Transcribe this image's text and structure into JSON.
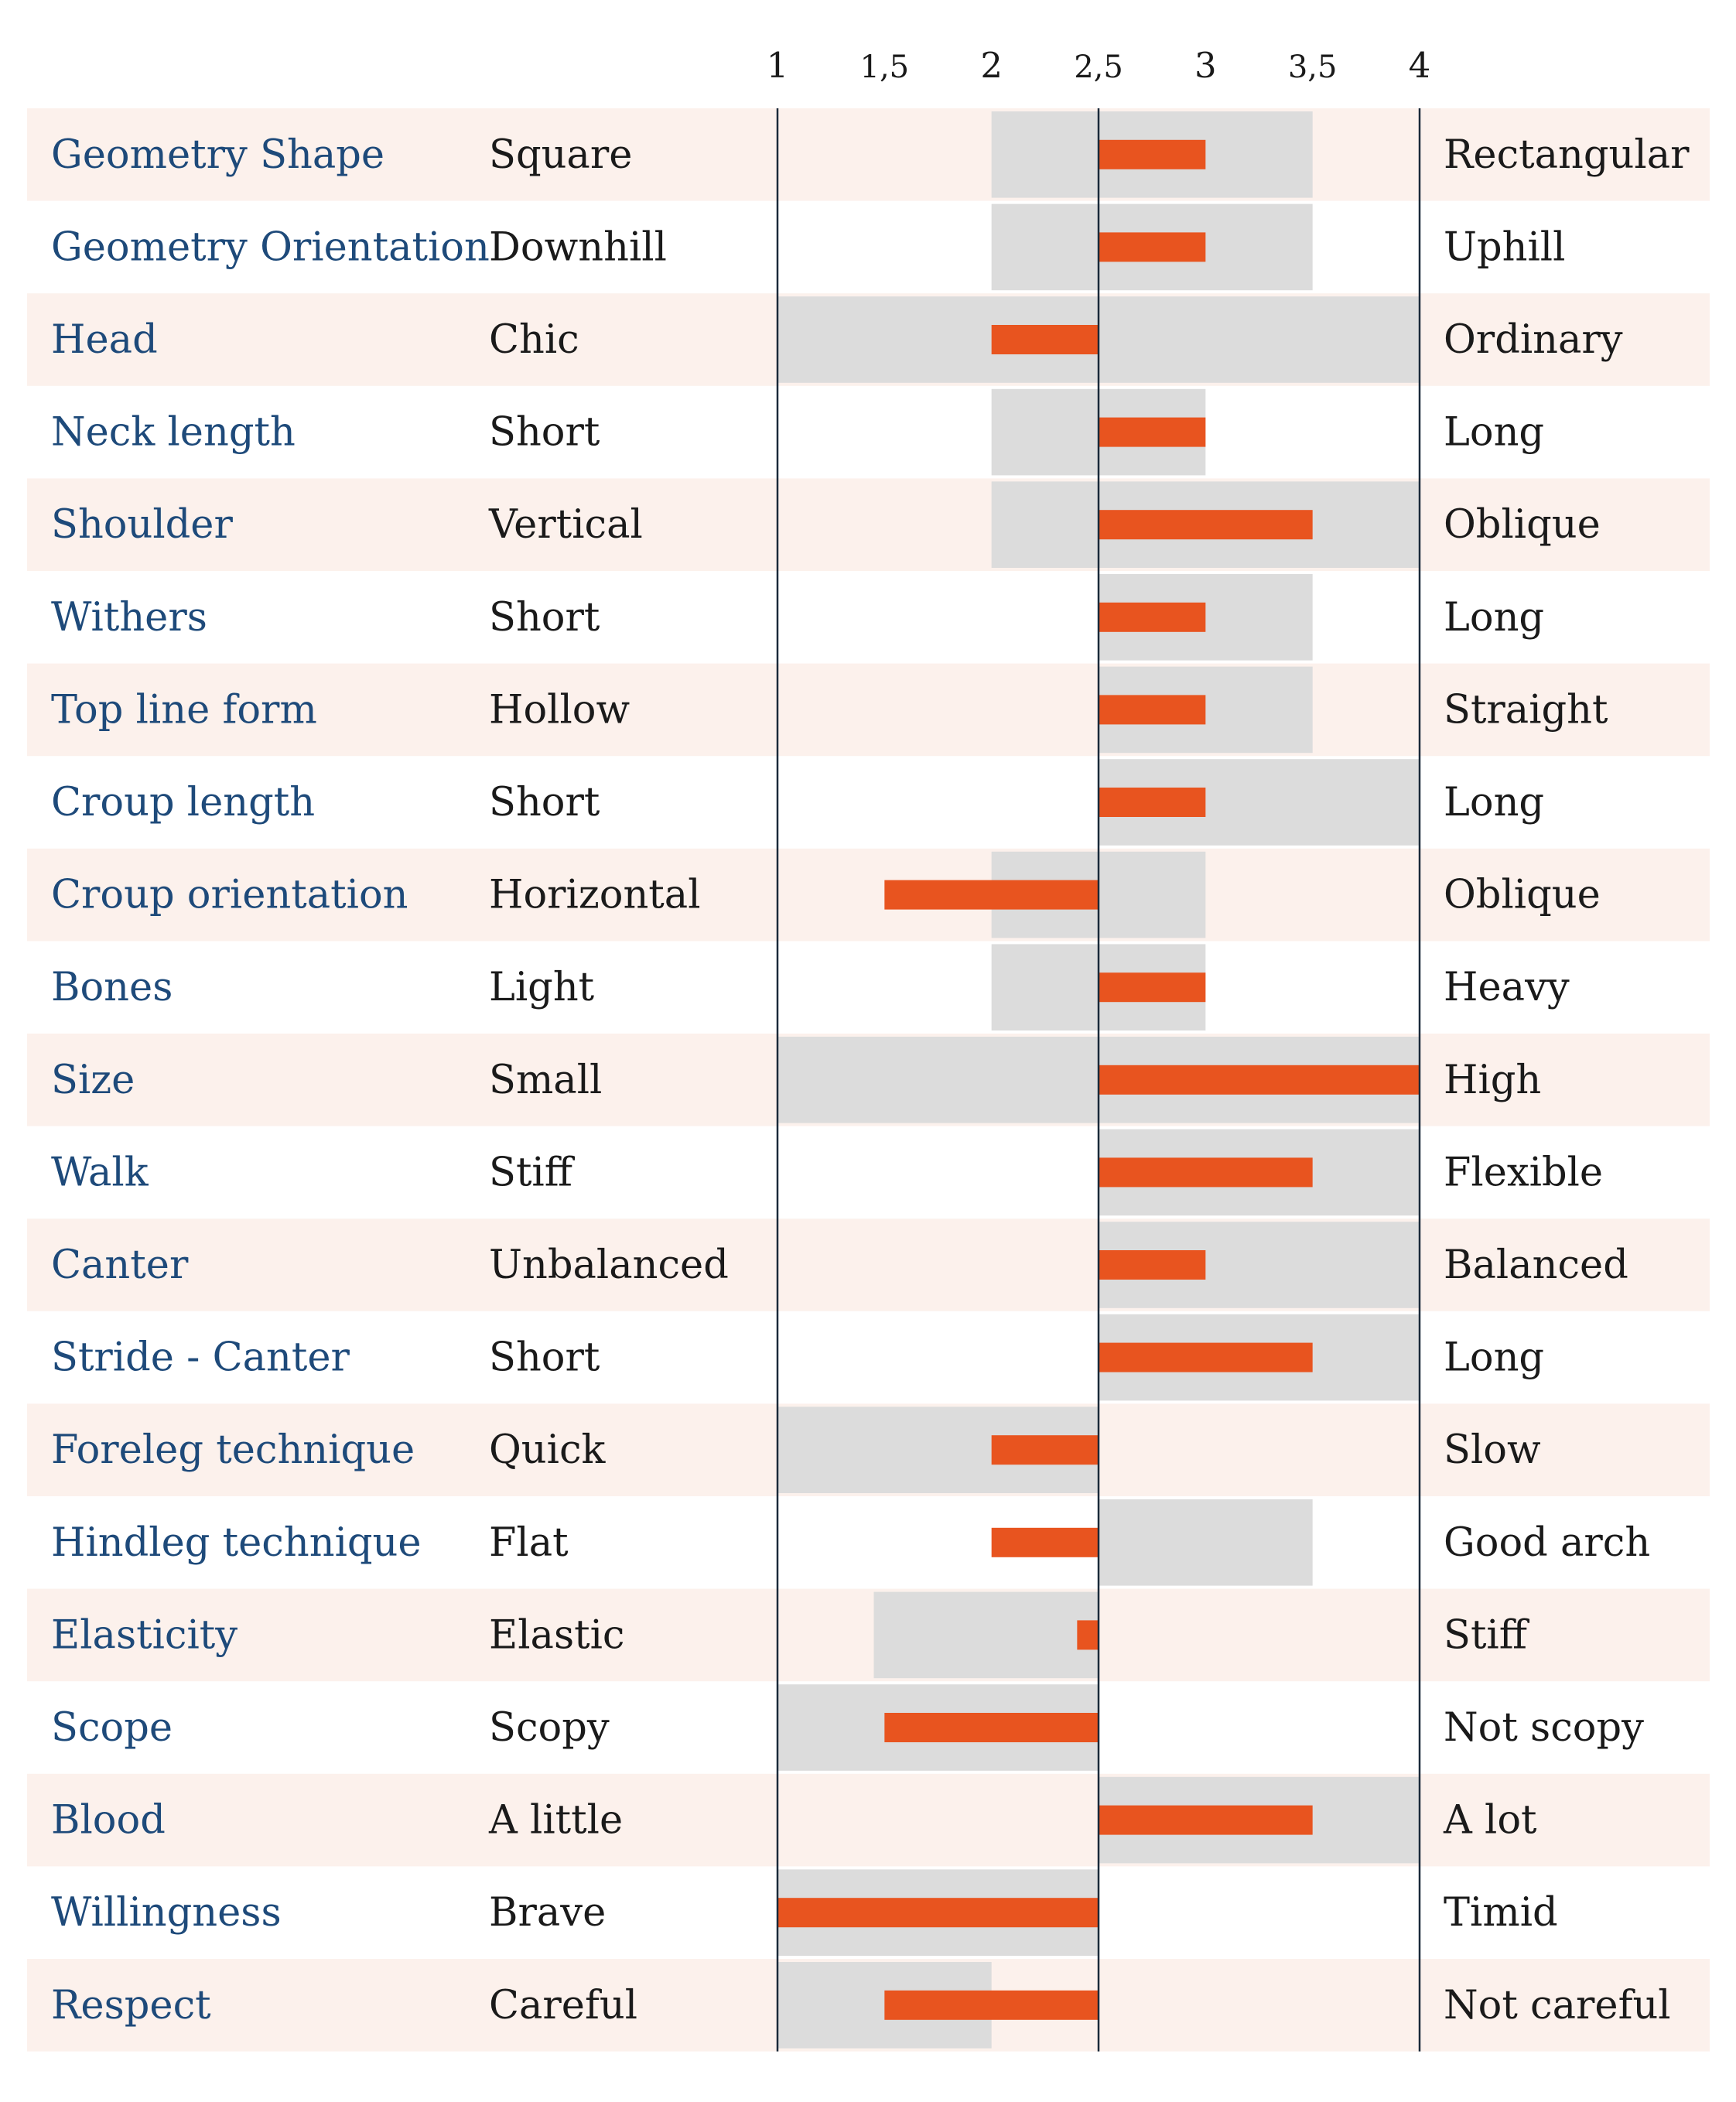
{
  "chart_data": {
    "type": "bar",
    "ticks": [
      "1",
      "1,5",
      "2",
      "2,5",
      "3",
      "3,5",
      "4"
    ],
    "tick_values": [
      1,
      1.5,
      2,
      2.5,
      3,
      3.5,
      4
    ],
    "xlim": [
      1,
      4
    ],
    "baseline": 2.5,
    "colors": {
      "bar": "#e8541f",
      "range": "#dcdcdc",
      "row_alt": "#fcf1ec",
      "axis": "#1a2a3a",
      "trait_text": "#1e4a7a"
    },
    "rows": [
      {
        "trait": "Geometry Shape",
        "low": "Square",
        "high": "Rectangular",
        "value": 3,
        "range": [
          2,
          3.5
        ]
      },
      {
        "trait": "Geometry Orientation",
        "low": "Downhill",
        "high": "Uphill",
        "value": 3,
        "range": [
          2,
          3.5
        ]
      },
      {
        "trait": "Head",
        "low": "Chic",
        "high": "Ordinary",
        "value": 2,
        "range": [
          1,
          4
        ]
      },
      {
        "trait": "Neck length",
        "low": "Short",
        "high": "Long",
        "value": 3,
        "range": [
          2,
          3
        ]
      },
      {
        "trait": "Shoulder",
        "low": "Vertical",
        "high": "Oblique",
        "value": 3.5,
        "range": [
          2,
          4
        ]
      },
      {
        "trait": "Withers",
        "low": "Short",
        "high": "Long",
        "value": 3,
        "range": [
          2.5,
          3.5
        ]
      },
      {
        "trait": "Top line form",
        "low": "Hollow",
        "high": "Straight",
        "value": 3,
        "range": [
          2.5,
          3.5
        ]
      },
      {
        "trait": "Croup length",
        "low": "Short",
        "high": "Long",
        "value": 3,
        "range": [
          2.5,
          4
        ]
      },
      {
        "trait": "Croup orientation",
        "low": "Horizontal",
        "high": "Oblique",
        "value": 1.5,
        "range": [
          2,
          3
        ]
      },
      {
        "trait": "Bones",
        "low": "Light",
        "high": "Heavy",
        "value": 3,
        "range": [
          2,
          3
        ]
      },
      {
        "trait": "Size",
        "low": "Small",
        "high": "High",
        "value": 4,
        "range": [
          1,
          4
        ]
      },
      {
        "trait": "Walk",
        "low": "Stiff",
        "high": "Flexible",
        "value": 3.5,
        "range": [
          2.5,
          4
        ]
      },
      {
        "trait": "Canter",
        "low": "Unbalanced",
        "high": "Balanced",
        "value": 3,
        "range": [
          2.5,
          4
        ]
      },
      {
        "trait": "Stride - Canter",
        "low": "Short",
        "high": "Long",
        "value": 3.5,
        "range": [
          2.5,
          4
        ]
      },
      {
        "trait": "Foreleg technique",
        "low": "Quick",
        "high": "Slow",
        "value": 2,
        "range": [
          1,
          2.5
        ]
      },
      {
        "trait": "Hindleg technique",
        "low": "Flat",
        "high": "Good arch",
        "value": 2,
        "range": [
          2.5,
          3.5
        ]
      },
      {
        "trait": "Elasticity",
        "low": "Elastic",
        "high": "Stiff",
        "value": 2.4,
        "range": [
          1.45,
          2.5
        ]
      },
      {
        "trait": "Scope",
        "low": "Scopy",
        "high": "Not scopy",
        "value": 1.5,
        "range": [
          1,
          2.5
        ]
      },
      {
        "trait": "Blood",
        "low": "A little",
        "high": "A lot",
        "value": 3.5,
        "range": [
          2.5,
          4
        ]
      },
      {
        "trait": "Willingness",
        "low": "Brave",
        "high": "Timid",
        "value": 1,
        "range": [
          1,
          2.5
        ]
      },
      {
        "trait": "Respect",
        "low": "Careful",
        "high": "Not careful",
        "value": 1.5,
        "range": [
          1,
          2
        ]
      }
    ]
  }
}
